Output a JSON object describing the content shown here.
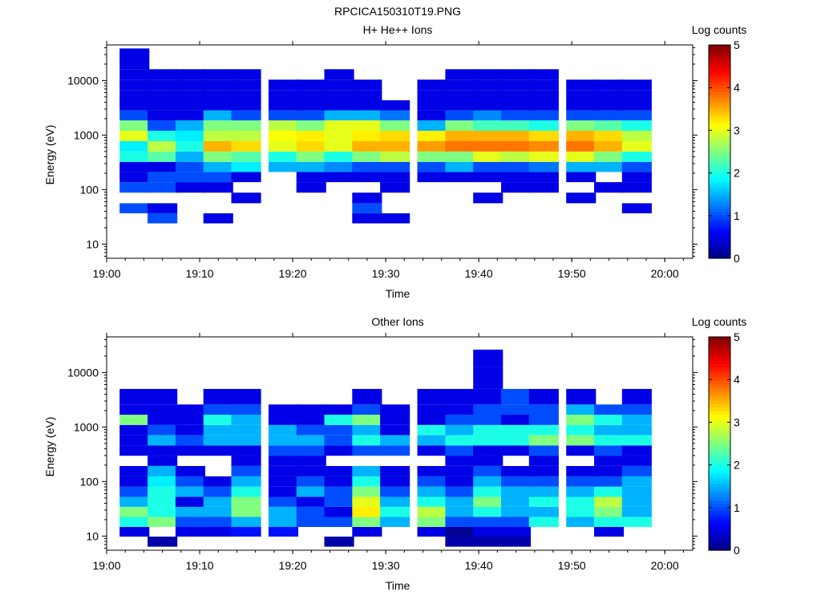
{
  "figure": {
    "title": "RPCICA150310T19.PNG"
  },
  "colorbar": {
    "label": "Log counts",
    "ticks": [
      "0",
      "1",
      "2",
      "3",
      "4",
      "5"
    ],
    "range": [
      0,
      5
    ],
    "colormap": "jet"
  },
  "chart_data": [
    {
      "type": "heatmap",
      "title": "H+ He++ Ions",
      "xlabel": "Time",
      "ylabel": "Energy (eV)",
      "yscale": "log",
      "ylim": [
        5.5,
        45000
      ],
      "xlim": [
        "19:00",
        "20:03"
      ],
      "xticks": [
        "19:00",
        "19:10",
        "19:20",
        "19:30",
        "19:40",
        "19:50",
        "20:00"
      ],
      "yticks": [
        "10",
        "100",
        "1000",
        "10000"
      ],
      "time_bins": [
        "19:03",
        "19:06",
        "19:09",
        "19:12",
        "19:15",
        "19:19",
        "19:22",
        "19:25",
        "19:28",
        "19:31",
        "19:35",
        "19:38",
        "19:41",
        "19:44",
        "19:47",
        "19:51",
        "19:54",
        "19:57"
      ],
      "energy_bins_eV": [
        30,
        45,
        70,
        110,
        170,
        260,
        400,
        620,
        960,
        1500,
        2300,
        3500,
        5400,
        8300,
        13000,
        20000,
        31000
      ],
      "log_counts": [
        [
          0,
          1,
          0,
          1,
          0.5,
          0.5,
          2,
          1.8,
          3,
          2.5,
          1,
          0.5,
          0.5,
          0.5,
          0.5,
          0.5,
          0.5
        ],
        [
          1,
          0.5,
          0,
          1,
          1,
          0.5,
          2.3,
          2.8,
          2,
          1,
          0.5,
          0.5,
          0.5,
          0.5,
          0.5,
          0,
          0
        ],
        [
          0,
          0,
          0,
          0.5,
          1,
          1,
          1.5,
          2,
          1.8,
          1.5,
          0.5,
          0.5,
          0.5,
          0.5,
          0.5,
          0,
          0
        ],
        [
          0.5,
          0,
          0,
          0.5,
          1,
          1.5,
          2.5,
          3.5,
          2.8,
          2.5,
          1.5,
          0.5,
          0.5,
          0.5,
          0.5,
          0,
          0
        ],
        [
          0,
          0,
          0.5,
          0,
          0.5,
          1.8,
          2.3,
          3.3,
          2.8,
          2.5,
          1,
          0.5,
          0.5,
          0.5,
          0.5,
          0,
          0
        ],
        [
          0,
          0,
          0,
          0,
          0,
          1.5,
          2,
          3,
          3.1,
          2.8,
          1,
          0.5,
          0.5,
          0.5,
          0,
          0,
          0
        ],
        [
          0,
          0,
          0,
          0.5,
          0.5,
          1.5,
          2.5,
          3.3,
          3.2,
          2.5,
          1,
          0.5,
          0.5,
          0.5,
          0,
          0,
          0
        ],
        [
          0,
          0,
          0,
          0,
          0.5,
          1.3,
          2,
          3,
          3,
          3,
          1.5,
          0.5,
          0.5,
          0.5,
          0.5,
          0,
          0
        ],
        [
          0.5,
          1,
          0.5,
          0,
          0.5,
          1,
          2.5,
          3.5,
          3.2,
          3,
          1.5,
          0.5,
          0.5,
          0.5,
          0,
          0,
          0
        ],
        [
          0.5,
          0,
          0,
          0.5,
          0.5,
          1,
          2.8,
          3.5,
          3.3,
          2.5,
          1.2,
          0.5,
          0,
          0,
          0,
          0,
          0
        ],
        [
          0,
          0,
          0,
          0,
          0.5,
          1,
          2.5,
          3.6,
          3.2,
          1.5,
          0.5,
          0.5,
          0.5,
          0.5,
          0,
          0,
          0
        ],
        [
          0,
          0,
          0,
          0,
          0.5,
          1.5,
          2.5,
          3.8,
          3.5,
          2.5,
          1,
          0.5,
          0.5,
          0.5,
          0.5,
          0,
          0
        ],
        [
          0,
          0,
          0.5,
          0,
          0.5,
          1,
          3,
          3.8,
          3.5,
          2.2,
          1.3,
          0.5,
          0.5,
          0.5,
          0.5,
          0,
          0
        ],
        [
          0,
          0,
          0,
          0.5,
          0.5,
          1,
          2.8,
          3.8,
          3.5,
          2.2,
          1,
          0.5,
          0.5,
          0.5,
          0.5,
          0,
          0
        ],
        [
          0,
          0,
          0,
          0.5,
          0.5,
          1.2,
          3,
          3.7,
          3.3,
          2,
          1,
          0.5,
          0.5,
          0.5,
          0.5,
          0,
          0
        ],
        [
          0,
          0,
          0.5,
          0,
          0.5,
          1.5,
          3,
          3.8,
          3.5,
          2.5,
          1,
          0.5,
          0.5,
          0.5,
          0,
          0,
          0
        ],
        [
          0,
          0,
          0,
          0.5,
          0,
          1.5,
          2.5,
          3.5,
          3.3,
          2.3,
          1,
          0.5,
          0.5,
          0.5,
          0,
          0,
          0
        ],
        [
          0,
          0.5,
          0,
          0.5,
          0.5,
          1,
          2,
          3,
          2.8,
          2,
          1,
          0.5,
          0.5,
          0.5,
          0,
          0,
          0
        ]
      ]
    },
    {
      "type": "heatmap",
      "title": "Other Ions",
      "xlabel": "Time",
      "ylabel": "Energy (eV)",
      "yscale": "log",
      "ylim": [
        5.5,
        45000
      ],
      "xlim": [
        "19:00",
        "20:03"
      ],
      "xticks": [
        "19:00",
        "19:10",
        "19:20",
        "19:30",
        "19:40",
        "19:50",
        "20:00"
      ],
      "yticks": [
        "10",
        "100",
        "1000",
        "10000"
      ],
      "time_bins": [
        "19:03",
        "19:06",
        "19:09",
        "19:12",
        "19:15",
        "19:19",
        "19:22",
        "19:25",
        "19:28",
        "19:31",
        "19:35",
        "19:38",
        "19:41",
        "19:44",
        "19:47",
        "19:51",
        "19:54",
        "19:57"
      ],
      "energy_bins_eV": [
        8,
        12,
        18,
        28,
        42,
        65,
        100,
        155,
        240,
        370,
        570,
        880,
        1350,
        2100,
        3200,
        7800,
        21000
      ],
      "log_counts": [
        [
          0,
          0.5,
          2,
          2.5,
          1.5,
          1,
          0.5,
          0.5,
          0,
          0.5,
          0.5,
          0.5,
          2.5,
          0.5,
          0.5,
          0,
          0
        ],
        [
          0.2,
          0,
          2.5,
          2,
          2,
          2,
          1.8,
          1.5,
          0.5,
          0.5,
          1.5,
          1,
          0.5,
          0.5,
          0.5,
          0,
          0
        ],
        [
          0,
          0.5,
          1,
          1.5,
          0.5,
          1.5,
          1,
          0.5,
          0,
          0.5,
          1,
          0.5,
          0.5,
          0.5,
          0,
          0,
          0
        ],
        [
          0,
          0.5,
          1,
          1.5,
          1.5,
          1,
          0.5,
          0,
          0,
          0.5,
          1.5,
          1.5,
          2,
          1,
          0.5,
          0,
          0
        ],
        [
          0,
          0.7,
          1.5,
          2.5,
          2.5,
          2,
          1.5,
          1,
          0.5,
          0.5,
          1.5,
          1.5,
          1.5,
          1,
          0.5,
          0,
          0
        ],
        [
          0,
          0.7,
          1.5,
          1.5,
          1,
          0.5,
          0.5,
          0.5,
          0.5,
          1,
          1.5,
          1.5,
          0.5,
          0.5,
          0,
          0,
          0
        ],
        [
          0,
          0,
          1,
          1,
          0.5,
          1.5,
          1,
          0.5,
          0.5,
          1,
          1.5,
          1,
          0.5,
          0.5,
          0,
          0,
          0
        ],
        [
          0.2,
          0,
          1,
          0.5,
          1,
          1,
          0.5,
          0.5,
          0,
          0.5,
          1,
          1,
          2,
          0.5,
          0,
          0,
          0
        ],
        [
          0,
          0.5,
          2.5,
          3.2,
          3,
          2.5,
          2,
          1.5,
          0,
          1,
          2,
          1.5,
          2.5,
          1,
          0.5,
          0,
          0
        ],
        [
          0,
          0,
          1.5,
          2,
          1.5,
          1,
          0.5,
          0.5,
          0,
          1,
          1.5,
          0.5,
          0.5,
          0.5,
          0,
          0,
          0
        ],
        [
          0,
          0.5,
          2.5,
          2.8,
          2,
          1.5,
          1,
          0.5,
          0,
          0.5,
          1.5,
          2,
          0.5,
          0.5,
          0.5,
          0,
          0
        ],
        [
          0.2,
          0.1,
          1,
          1.5,
          1.5,
          1,
          0.5,
          0.5,
          0.5,
          1,
          2,
          1.5,
          1,
          0.5,
          0.5,
          0,
          0
        ],
        [
          0.2,
          0.5,
          1,
          2,
          2.5,
          2,
          1.5,
          1,
          0.5,
          0.5,
          2,
          2,
          1,
          1,
          0.5,
          0.5,
          0.5
        ],
        [
          0.2,
          0.5,
          1,
          1.5,
          1.5,
          1.5,
          1,
          0.5,
          0,
          0.5,
          2,
          2,
          0.5,
          1,
          1,
          0,
          0
        ],
        [
          0,
          0,
          2,
          1.5,
          2,
          1.5,
          1,
          0.5,
          0.5,
          1,
          2.5,
          2,
          1,
          1,
          0.5,
          0,
          0
        ],
        [
          0,
          0,
          1.5,
          2,
          2,
          1.5,
          1,
          0.5,
          0,
          0.5,
          2.5,
          2,
          2.5,
          1.5,
          0.5,
          0,
          0
        ],
        [
          0,
          0.5,
          2,
          2.5,
          2.8,
          2,
          1,
          0.5,
          0.5,
          1,
          2,
          1.5,
          2,
          1,
          0,
          0,
          0
        ],
        [
          0,
          0,
          2,
          1.5,
          1.5,
          1.5,
          1.5,
          1,
          0.5,
          0.5,
          2,
          1.5,
          1.5,
          1,
          0.5,
          0,
          0
        ]
      ]
    }
  ]
}
